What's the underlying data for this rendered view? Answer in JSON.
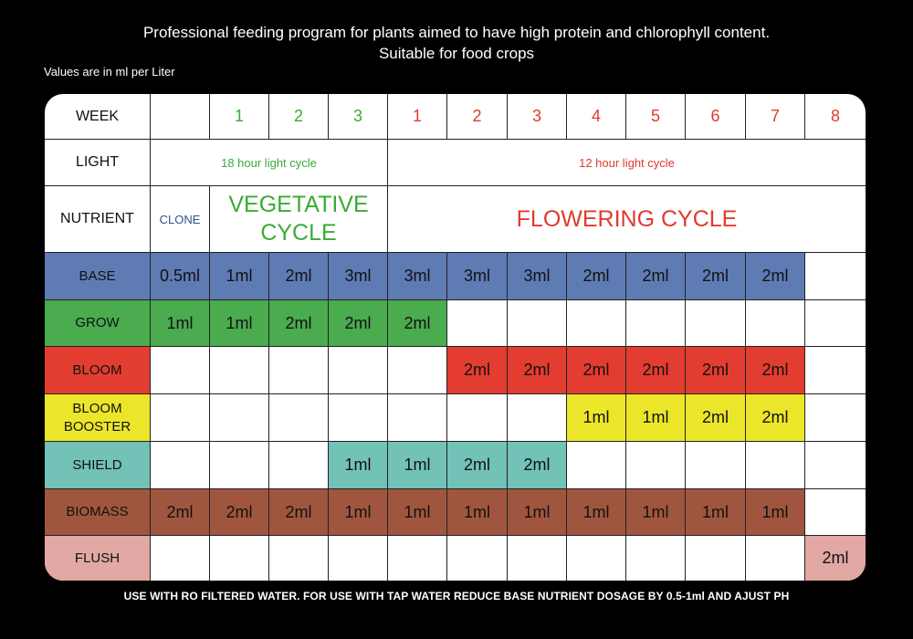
{
  "title": "Professional feeding program for plants aimed to have high protein and chlorophyll content. Suitable for food crops",
  "units_note": "Values are in ml per Liter",
  "footer": "USE WITH RO FILTERED WATER. FOR USE WITH TAP WATER REDUCE BASE NUTRIENT DOSAGE BY 0.5-1ml AND AJUST PH",
  "headers": {
    "week": "WEEK",
    "light": "LIGHT",
    "nutrient": "NUTRIENT"
  },
  "weeks": [
    {
      "label": "1",
      "phase": "veg"
    },
    {
      "label": "2",
      "phase": "veg"
    },
    {
      "label": "3",
      "phase": "veg"
    },
    {
      "label": "1",
      "phase": "flower"
    },
    {
      "label": "2",
      "phase": "flower"
    },
    {
      "label": "3",
      "phase": "flower"
    },
    {
      "label": "4",
      "phase": "flower"
    },
    {
      "label": "5",
      "phase": "flower"
    },
    {
      "label": "6",
      "phase": "flower"
    },
    {
      "label": "7",
      "phase": "flower"
    },
    {
      "label": "8",
      "phase": "flower"
    }
  ],
  "light": {
    "veg": "18 hour light cycle",
    "flower": "12 hour light cycle"
  },
  "cycles": {
    "clone": "CLONE",
    "vegetative": "VEGETATIVE CYCLE",
    "flowering": "FLOWERING CYCLE"
  },
  "colors": {
    "base": "#5f7bb3",
    "grow": "#4aab4f",
    "bloom": "#e23d30",
    "bloom_booster": "#ece62a",
    "shield": "#72c2b8",
    "biomass": "#a0563e",
    "flush": "#e1a8a4",
    "veg_text": "#3aaa35",
    "flower_text": "#e03a2e"
  },
  "nutrients": [
    {
      "key": "base",
      "label": "BASE",
      "values": [
        "0.5ml",
        "1ml",
        "2ml",
        "3ml",
        "3ml",
        "3ml",
        "3ml",
        "2ml",
        "2ml",
        "2ml",
        "2ml",
        ""
      ]
    },
    {
      "key": "grow",
      "label": "GROW",
      "values": [
        "1ml",
        "1ml",
        "2ml",
        "2ml",
        "2ml",
        "",
        "",
        "",
        "",
        "",
        "",
        ""
      ]
    },
    {
      "key": "bloom",
      "label": "BLOOM",
      "values": [
        "",
        "",
        "",
        "",
        "",
        "2ml",
        "2ml",
        "2ml",
        "2ml",
        "2ml",
        "2ml",
        ""
      ]
    },
    {
      "key": "bloom_booster",
      "label": "BLOOM BOOSTER",
      "values": [
        "",
        "",
        "",
        "",
        "",
        "",
        "",
        "1ml",
        "1ml",
        "2ml",
        "2ml",
        ""
      ]
    },
    {
      "key": "shield",
      "label": "SHIELD",
      "values": [
        "",
        "",
        "",
        "1ml",
        "1ml",
        "2ml",
        "2ml",
        "",
        "",
        "",
        "",
        ""
      ]
    },
    {
      "key": "biomass",
      "label": "BIOMASS",
      "values": [
        "2ml",
        "2ml",
        "2ml",
        "1ml",
        "1ml",
        "1ml",
        "1ml",
        "1ml",
        "1ml",
        "1ml",
        "1ml",
        ""
      ]
    },
    {
      "key": "flush",
      "label": "FLUSH",
      "values": [
        "",
        "",
        "",
        "",
        "",
        "",
        "",
        "",
        "",
        "",
        "",
        "2ml"
      ]
    }
  ]
}
